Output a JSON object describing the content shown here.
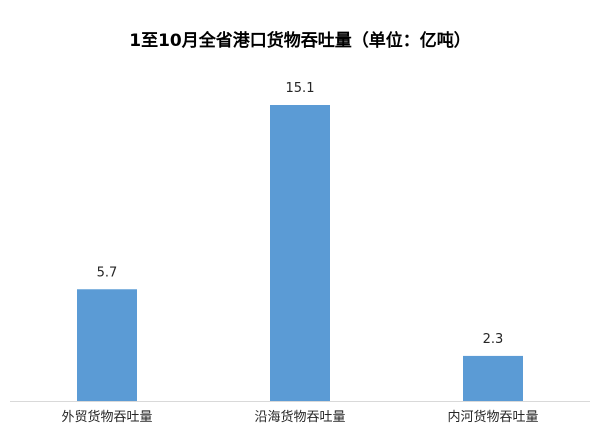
{
  "chart_data": {
    "type": "bar",
    "title": "1至10月全省港口货物吞吐量（单位：亿吨）",
    "categories": [
      "外贸货物吞吐量",
      "沿海货物吞吐量",
      "内河货物吞吐量"
    ],
    "values": [
      5.7,
      15.1,
      2.3
    ],
    "data_labels": [
      "5.7",
      "15.1",
      "2.3"
    ],
    "ylim": [
      0,
      16
    ],
    "grid": false,
    "legend": "none",
    "bar_color": "#5B9BD5"
  }
}
